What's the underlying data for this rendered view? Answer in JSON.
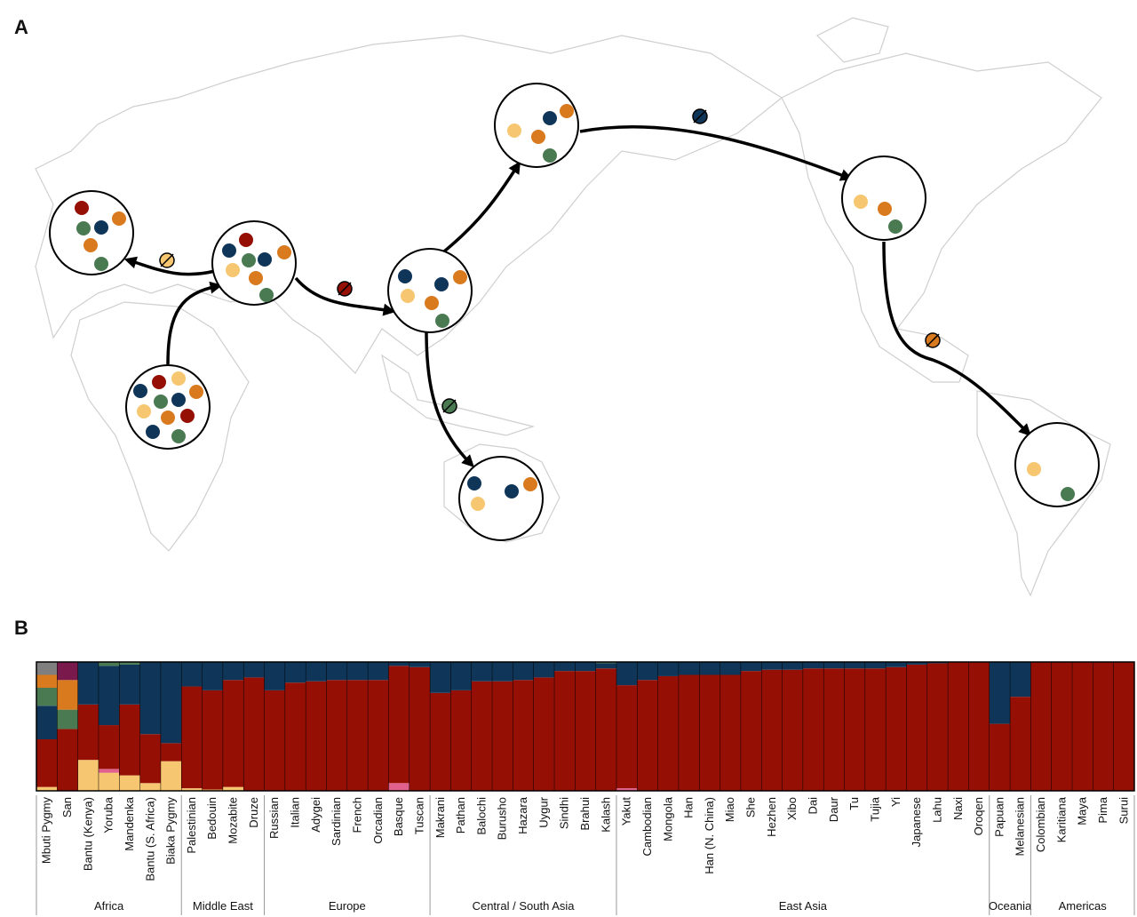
{
  "panel_labels": [
    "A",
    "B"
  ],
  "chart_data": {
    "type": "stacked-bar",
    "regions": [
      {
        "name": "Africa",
        "populations": [
          "Mbuti Pygmy",
          "San",
          "Bantu (Kenya)",
          "Yoruba",
          "Mandenka",
          "Bantu (S. Africa)",
          "Biaka Pygmy"
        ]
      },
      {
        "name": "Middle East",
        "populations": [
          "Palestinian",
          "Bedouin",
          "Mozabite",
          "Druze"
        ]
      },
      {
        "name": "Europe",
        "populations": [
          "Russian",
          "Italian",
          "Adygei",
          "Sardinian",
          "French",
          "Orcadian",
          "Basque",
          "Tuscan"
        ]
      },
      {
        "name": "Central / South Asia",
        "populations": [
          "Makrani",
          "Pathan",
          "Balochi",
          "Burusho",
          "Hazara",
          "Uygur",
          "Sindhi",
          "Brahui",
          "Kalash"
        ]
      },
      {
        "name": "East Asia",
        "populations": [
          "Yakut",
          "Cambodian",
          "Mongola",
          "Han",
          "Han (N. China)",
          "Miao",
          "She",
          "Hezhen",
          "Xibo",
          "Dai",
          "Daur",
          "Tu",
          "Tujia",
          "Yi",
          "Japanese",
          "Lahu",
          "Naxi",
          "Oroqen"
        ]
      },
      {
        "name": "Oceania",
        "populations": [
          "Papuan",
          "Melanesian"
        ]
      },
      {
        "name": "Americas",
        "populations": [
          "Colombian",
          "Karitiana",
          "Maya",
          "Pima",
          "Surui"
        ]
      }
    ],
    "series": [
      {
        "color": "#f7c670",
        "values": [
          0.03,
          0,
          0.24,
          0.14,
          0.12,
          0.06,
          0.23,
          0.02,
          0.01,
          0.03,
          0,
          0,
          0,
          0,
          0,
          0,
          0,
          0,
          0,
          0,
          0,
          0,
          0,
          0,
          0,
          0,
          0,
          0,
          0,
          0,
          0,
          0,
          0,
          0,
          0,
          0,
          0,
          0,
          0,
          0,
          0,
          0,
          0,
          0,
          0,
          0,
          0,
          0,
          0,
          0,
          0,
          0,
          0
        ]
      },
      {
        "color": "#e0628c",
        "values": [
          0,
          0,
          0,
          0.03,
          0,
          0,
          0,
          0,
          0,
          0,
          0,
          0,
          0,
          0,
          0,
          0,
          0,
          0.06,
          0,
          0,
          0,
          0,
          0,
          0,
          0,
          0,
          0,
          0,
          0.02,
          0,
          0,
          0,
          0,
          0,
          0,
          0,
          0,
          0,
          0,
          0,
          0,
          0,
          0,
          0,
          0,
          0,
          0,
          0,
          0,
          0,
          0,
          0,
          0
        ]
      },
      {
        "color": "#950f05",
        "values": [
          0.37,
          0.48,
          0.43,
          0.34,
          0.55,
          0.38,
          0.14,
          0.79,
          0.77,
          0.83,
          0.88,
          0.78,
          0.84,
          0.85,
          0.86,
          0.86,
          0.86,
          0.91,
          0.96,
          0.76,
          0.78,
          0.85,
          0.85,
          0.86,
          0.88,
          0.93,
          0.93,
          0.95,
          0.8,
          0.86,
          0.89,
          0.9,
          0.9,
          0.9,
          0.93,
          0.94,
          0.94,
          0.95,
          0.95,
          0.95,
          0.95,
          0.96,
          0.98,
          0.99,
          1,
          1,
          0.52,
          0.73,
          1,
          1,
          1,
          1,
          1
        ]
      },
      {
        "color": "#0f3659",
        "values": [
          0.26,
          0,
          0.33,
          0.46,
          0.31,
          0.56,
          0.63,
          0.19,
          0.22,
          0.14,
          0.12,
          0.22,
          0.16,
          0.15,
          0.14,
          0.14,
          0.14,
          0.03,
          0.04,
          0.24,
          0.22,
          0.15,
          0.15,
          0.14,
          0.12,
          0.07,
          0.07,
          0.04,
          0.18,
          0.14,
          0.11,
          0.1,
          0.1,
          0.1,
          0.07,
          0.06,
          0.06,
          0.05,
          0.05,
          0.05,
          0.05,
          0.04,
          0.02,
          0.01,
          0,
          0,
          0.48,
          0.27,
          0,
          0,
          0,
          0,
          0
        ]
      },
      {
        "color": "#4a7a52",
        "values": [
          0.14,
          0.15,
          0,
          0.03,
          0.02,
          0,
          0,
          0,
          0,
          0,
          0,
          0,
          0,
          0,
          0,
          0,
          0,
          0,
          0,
          0,
          0,
          0,
          0,
          0,
          0,
          0,
          0,
          0.01,
          0,
          0,
          0,
          0,
          0,
          0,
          0,
          0,
          0,
          0,
          0,
          0,
          0,
          0,
          0,
          0,
          0,
          0,
          0,
          0,
          0,
          0,
          0,
          0,
          0
        ]
      },
      {
        "color": "#d97a1e",
        "values": [
          0.1,
          0.23,
          0,
          0,
          0,
          0,
          0,
          0,
          0,
          0,
          0,
          0,
          0,
          0,
          0,
          0,
          0,
          0,
          0,
          0,
          0,
          0,
          0,
          0,
          0,
          0,
          0,
          0,
          0,
          0,
          0,
          0,
          0,
          0,
          0,
          0,
          0,
          0,
          0,
          0,
          0,
          0,
          0,
          0,
          0,
          0,
          0,
          0,
          0,
          0,
          0,
          0,
          0
        ]
      },
      {
        "color": "#7a1a4c",
        "values": [
          0,
          0.14,
          0,
          0,
          0,
          0,
          0,
          0,
          0,
          0,
          0,
          0,
          0,
          0,
          0,
          0,
          0,
          0,
          0,
          0,
          0,
          0,
          0,
          0,
          0,
          0,
          0,
          0,
          0,
          0,
          0,
          0,
          0,
          0,
          0,
          0,
          0,
          0,
          0,
          0,
          0,
          0,
          0,
          0,
          0,
          0,
          0,
          0,
          0,
          0,
          0,
          0,
          0
        ]
      },
      {
        "color": "#7f7f7f",
        "values": [
          0.1,
          0,
          0,
          0,
          0,
          0,
          0,
          0,
          0,
          0,
          0,
          0,
          0,
          0,
          0,
          0,
          0,
          0,
          0,
          0,
          0,
          0,
          0,
          0,
          0,
          0,
          0,
          0,
          0,
          0,
          0,
          0,
          0,
          0,
          0,
          0,
          0,
          0,
          0,
          0,
          0,
          0,
          0,
          0,
          0,
          0,
          0,
          0,
          0,
          0,
          0,
          0,
          0
        ]
      }
    ]
  }
}
